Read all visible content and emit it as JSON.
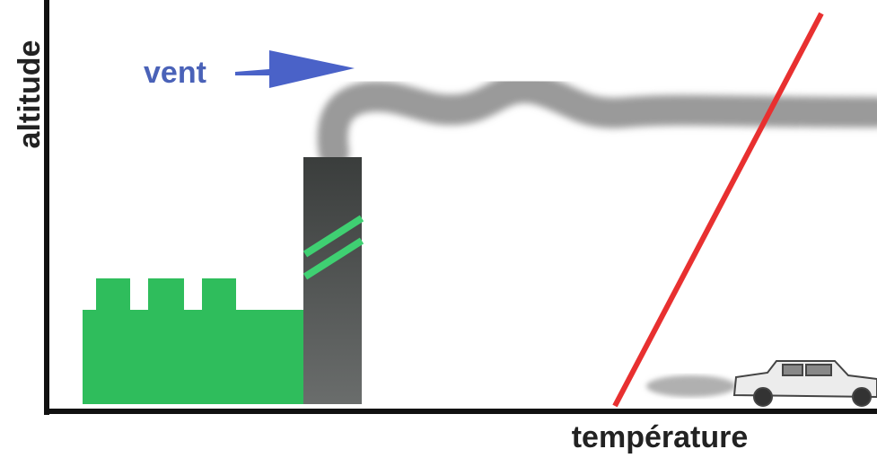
{
  "y_axis_label": "altitude",
  "x_axis_label": "température",
  "wind_label": "vent"
}
